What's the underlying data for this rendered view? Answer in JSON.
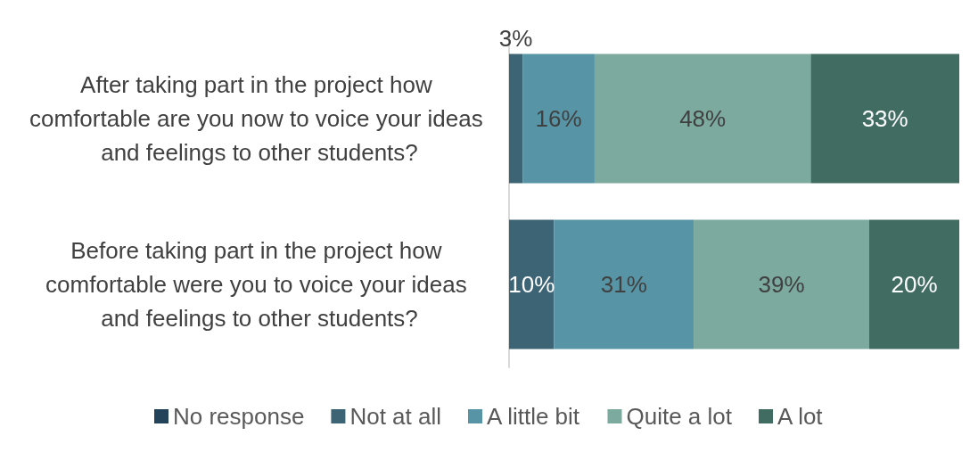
{
  "chart_data": {
    "type": "bar",
    "orientation": "horizontal",
    "stacked": true,
    "legend": "bottom",
    "categories": [
      "After taking part in the project how comfortable are you now to voice your ideas and feelings to other students?",
      "Before taking part in the project how comfortable were you to voice your ideas and feelings to other students?"
    ],
    "series": [
      {
        "name": "No response",
        "color": "#22435a",
        "values": [
          null,
          null
        ],
        "value_labels": [
          null,
          null
        ]
      },
      {
        "name": "Not at all",
        "color": "#3d6475",
        "values": [
          3,
          10
        ],
        "value_labels": [
          "3%",
          "10%"
        ]
      },
      {
        "name": "A little bit",
        "color": "#5795a6",
        "values": [
          16,
          31
        ],
        "value_labels": [
          "16%",
          "31%"
        ]
      },
      {
        "name": "Quite a lot",
        "color": "#7caa9f",
        "values": [
          48,
          39
        ],
        "value_labels": [
          "48%",
          "39%"
        ]
      },
      {
        "name": "A lot",
        "color": "#416c62",
        "values": [
          33,
          20
        ],
        "value_labels": [
          "33%",
          "20%"
        ]
      }
    ]
  }
}
